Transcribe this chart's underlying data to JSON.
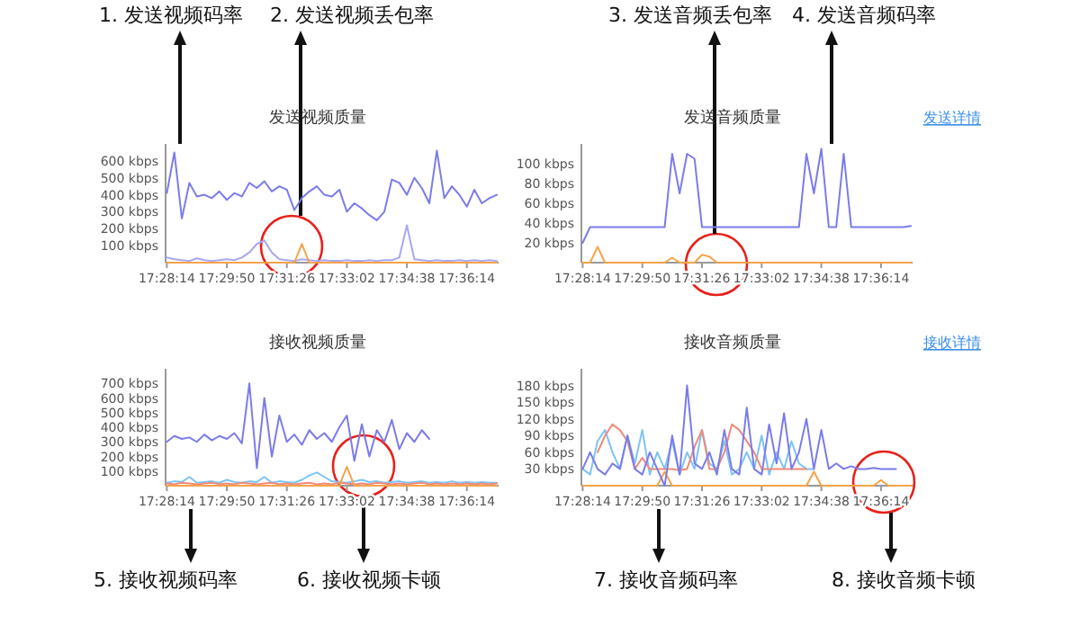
{
  "chart_data": [
    {
      "type": "line",
      "title": "发送视频质量",
      "xlim": [
        17.47,
        17.618
      ],
      "ylim": [
        0,
        700
      ],
      "xticks": [
        {
          "value": 17.47056,
          "label": "17:28:14"
        },
        {
          "value": 17.49722,
          "label": "17:29:50"
        },
        {
          "value": 17.52389,
          "label": "17:31:26"
        },
        {
          "value": 17.55056,
          "label": "17:33:02"
        },
        {
          "value": 17.57722,
          "label": "17:34:38"
        },
        {
          "value": 17.60389,
          "label": "17:36:14"
        }
      ],
      "yticks": [
        {
          "value": 100,
          "label": "100 kbps"
        },
        {
          "value": 200,
          "label": "200 kbps"
        },
        {
          "value": 300,
          "label": "300 kbps"
        },
        {
          "value": 400,
          "label": "400 kbps"
        },
        {
          "value": 500,
          "label": "500 kbps"
        },
        {
          "value": 600,
          "label": "600 kbps"
        }
      ],
      "x": [
        17.47056,
        17.47389,
        17.47722,
        17.48056,
        17.48389,
        17.48722,
        17.49056,
        17.49389,
        17.49722,
        17.50056,
        17.50389,
        17.50722,
        17.51056,
        17.51389,
        17.51722,
        17.52056,
        17.52389,
        17.52722,
        17.53056,
        17.53389,
        17.53722,
        17.54056,
        17.54389,
        17.54722,
        17.55056,
        17.55389,
        17.55722,
        17.56056,
        17.56389,
        17.56722,
        17.57056,
        17.57389,
        17.57722,
        17.58056,
        17.58389,
        17.58722,
        17.59056,
        17.59389,
        17.59722,
        17.60056,
        17.60389,
        17.60722,
        17.61056,
        17.61389,
        17.61722
      ],
      "series": [
        {
          "color": "#a7a7f3",
          "values": [
            30,
            20,
            15,
            10,
            25,
            15,
            10,
            15,
            20,
            15,
            30,
            60,
            110,
            130,
            60,
            20,
            15,
            10,
            20,
            15,
            10,
            15,
            10,
            10,
            15,
            10,
            10,
            15,
            10,
            15,
            15,
            30,
            220,
            20,
            15,
            10,
            15,
            10,
            10,
            15,
            10,
            15,
            10,
            15,
            10
          ]
        },
        {
          "color": "#f5a34a",
          "values": [
            0,
            0,
            0,
            0,
            0,
            0,
            0,
            0,
            0,
            0,
            0,
            0,
            0,
            0,
            0,
            0,
            0,
            0,
            110,
            0,
            0,
            0,
            0,
            0,
            0,
            0,
            0,
            0,
            0,
            0,
            0,
            0,
            0,
            0,
            0,
            0,
            0,
            0,
            0,
            0,
            0,
            0,
            0,
            0,
            0
          ]
        },
        {
          "color": "#7b7bec",
          "values": [
            410,
            650,
            260,
            470,
            390,
            400,
            380,
            420,
            370,
            410,
            390,
            470,
            440,
            480,
            420,
            450,
            430,
            310,
            380,
            420,
            450,
            400,
            390,
            430,
            300,
            350,
            320,
            280,
            250,
            300,
            490,
            470,
            400,
            500,
            440,
            350,
            660,
            380,
            450,
            400,
            330,
            430,
            350,
            380,
            400
          ]
        }
      ],
      "annotations": [
        "1. 发送视频码率",
        "2. 发送视频丢包率"
      ]
    },
    {
      "type": "line",
      "title": "发送音频质量",
      "xlim": [
        17.47,
        17.618
      ],
      "ylim": [
        0,
        120
      ],
      "xticks": [
        {
          "value": 17.47056,
          "label": "17:28:14"
        },
        {
          "value": 17.49722,
          "label": "17:29:50"
        },
        {
          "value": 17.52389,
          "label": "17:31:26"
        },
        {
          "value": 17.55056,
          "label": "17:33:02"
        },
        {
          "value": 17.57722,
          "label": "17:34:38"
        },
        {
          "value": 17.60389,
          "label": "17:36:14"
        }
      ],
      "yticks": [
        {
          "value": 20,
          "label": "20 kbps"
        },
        {
          "value": 40,
          "label": "40 kbps"
        },
        {
          "value": 60,
          "label": "60 kbps"
        },
        {
          "value": 80,
          "label": "80 kbps"
        },
        {
          "value": 100,
          "label": "100 kbps"
        }
      ],
      "x": [
        17.47056,
        17.47389,
        17.47722,
        17.48056,
        17.48389,
        17.48722,
        17.49056,
        17.49389,
        17.49722,
        17.50056,
        17.50389,
        17.50722,
        17.51056,
        17.51389,
        17.51722,
        17.52056,
        17.52389,
        17.52722,
        17.53056,
        17.53389,
        17.53722,
        17.54056,
        17.54389,
        17.54722,
        17.55056,
        17.55389,
        17.55722,
        17.56056,
        17.56389,
        17.56722,
        17.57056,
        17.57389,
        17.57722,
        17.58056,
        17.58389,
        17.58722,
        17.59056,
        17.59389,
        17.59722,
        17.60056,
        17.60389,
        17.60722,
        17.61056,
        17.61389,
        17.61722
      ],
      "series": [
        {
          "color": "#f5a34a",
          "values": [
            0,
            0,
            16,
            0,
            0,
            0,
            0,
            0,
            0,
            0,
            0,
            0,
            5,
            0,
            0,
            0,
            8,
            6,
            0,
            0,
            0,
            0,
            0,
            0,
            0,
            0,
            0,
            0,
            0,
            0,
            0,
            0,
            0,
            0,
            0,
            0,
            0,
            0,
            0,
            0,
            0,
            0,
            0,
            0,
            0
          ]
        },
        {
          "color": "#7b7bec",
          "values": [
            20,
            36,
            36,
            36,
            36,
            36,
            36,
            36,
            36,
            36,
            36,
            36,
            110,
            70,
            110,
            105,
            36,
            36,
            36,
            36,
            36,
            36,
            36,
            36,
            36,
            36,
            36,
            36,
            36,
            36,
            110,
            70,
            115,
            36,
            36,
            110,
            36,
            36,
            36,
            36,
            36,
            36,
            36,
            36,
            37
          ]
        }
      ],
      "annotations": [
        "3. 发送音频丢包率",
        "4. 发送音频码率",
        "发送详情"
      ]
    },
    {
      "type": "line",
      "title": "接收视频质量",
      "xlim": [
        17.47,
        17.618
      ],
      "ylim": [
        0,
        800
      ],
      "xticks": [
        {
          "value": 17.47056,
          "label": "17:28:14"
        },
        {
          "value": 17.49722,
          "label": "17:29:50"
        },
        {
          "value": 17.52389,
          "label": "17:31:26"
        },
        {
          "value": 17.55056,
          "label": "17:33:02"
        },
        {
          "value": 17.57722,
          "label": "17:34:38"
        },
        {
          "value": 17.60389,
          "label": "17:36:14"
        }
      ],
      "yticks": [
        {
          "value": 100,
          "label": "100 kbps"
        },
        {
          "value": 200,
          "label": "200 kbps"
        },
        {
          "value": 300,
          "label": "300 kbps"
        },
        {
          "value": 400,
          "label": "400 kbps"
        },
        {
          "value": 500,
          "label": "500 kbps"
        },
        {
          "value": 600,
          "label": "600 kbps"
        },
        {
          "value": 700,
          "label": "700 kbps"
        }
      ],
      "x": [
        17.47056,
        17.47389,
        17.47722,
        17.48056,
        17.48389,
        17.48722,
        17.49056,
        17.49389,
        17.49722,
        17.50056,
        17.50389,
        17.50722,
        17.51056,
        17.51389,
        17.51722,
        17.52056,
        17.52389,
        17.52722,
        17.53056,
        17.53389,
        17.53722,
        17.54056,
        17.54389,
        17.54722,
        17.55056,
        17.55389,
        17.55722,
        17.56056,
        17.56389,
        17.56722,
        17.57056,
        17.57389,
        17.57722,
        17.58056,
        17.58389,
        17.58722,
        17.59056,
        17.59389,
        17.59722,
        17.60056,
        17.60389,
        17.60722,
        17.61056,
        17.61389,
        17.61722
      ],
      "series": [
        {
          "color": "#7cc4f5",
          "values": [
            20,
            30,
            25,
            60,
            20,
            25,
            30,
            20,
            40,
            25,
            20,
            30,
            25,
            60,
            20,
            30,
            25,
            20,
            40,
            70,
            90,
            60,
            30,
            25,
            20,
            30,
            40,
            25,
            30,
            20,
            25,
            30,
            20,
            25,
            30,
            20,
            25,
            20,
            30,
            20,
            25,
            20,
            25,
            20,
            20
          ]
        },
        {
          "color": "#f08a78",
          "values": [
            15,
            10,
            20,
            15,
            10,
            15,
            20,
            10,
            15,
            10,
            20,
            15,
            10,
            15,
            20,
            10,
            15,
            10,
            15,
            20,
            10,
            15,
            10,
            20,
            15,
            10,
            15,
            10,
            20,
            15,
            10,
            15,
            10,
            15,
            20,
            10,
            15,
            10,
            15,
            10,
            15,
            10,
            15,
            10,
            15
          ]
        },
        {
          "color": "#f5a34a",
          "values": [
            0,
            0,
            0,
            0,
            0,
            0,
            0,
            0,
            0,
            0,
            0,
            0,
            0,
            0,
            0,
            0,
            0,
            0,
            0,
            0,
            0,
            0,
            0,
            0,
            130,
            0,
            0,
            0,
            0,
            0,
            0,
            0,
            0,
            0,
            0,
            0,
            0,
            0,
            0,
            0,
            0,
            0,
            0,
            0,
            0
          ]
        },
        {
          "color": "#7b7bec",
          "values": [
            300,
            340,
            320,
            330,
            300,
            350,
            310,
            340,
            320,
            360,
            290,
            700,
            120,
            600,
            200,
            480,
            300,
            350,
            280,
            380,
            320,
            360,
            300,
            400,
            480,
            170,
            420,
            200,
            380,
            300,
            450,
            250,
            360,
            300,
            380,
            320,
            null,
            null,
            null,
            null,
            null,
            null,
            null,
            null,
            null
          ]
        }
      ],
      "annotations": [
        "5. 接收视频码率",
        "6. 接收视频卡顿"
      ]
    },
    {
      "type": "line",
      "title": "接收音频质量",
      "xlim": [
        17.47,
        17.618
      ],
      "ylim": [
        0,
        210
      ],
      "xticks": [
        {
          "value": 17.47056,
          "label": "17:28:14"
        },
        {
          "value": 17.49722,
          "label": "17:29:50"
        },
        {
          "value": 17.52389,
          "label": "17:31:26"
        },
        {
          "value": 17.55056,
          "label": "17:33:02"
        },
        {
          "value": 17.57722,
          "label": "17:34:38"
        },
        {
          "value": 17.60389,
          "label": "17:36:14"
        }
      ],
      "yticks": [
        {
          "value": 30,
          "label": "30 kbps"
        },
        {
          "value": 60,
          "label": "60 kbps"
        },
        {
          "value": 90,
          "label": "90 kbps"
        },
        {
          "value": 120,
          "label": "120 kbps"
        },
        {
          "value": 150,
          "label": "150 kbps"
        },
        {
          "value": 180,
          "label": "180 kbps"
        }
      ],
      "x": [
        17.47056,
        17.47389,
        17.47722,
        17.48056,
        17.48389,
        17.48722,
        17.49056,
        17.49389,
        17.49722,
        17.50056,
        17.50389,
        17.50722,
        17.51056,
        17.51389,
        17.51722,
        17.52056,
        17.52389,
        17.52722,
        17.53056,
        17.53389,
        17.53722,
        17.54056,
        17.54389,
        17.54722,
        17.55056,
        17.55389,
        17.55722,
        17.56056,
        17.56389,
        17.56722,
        17.57056,
        17.57389,
        17.57722,
        17.58056,
        17.58389,
        17.58722,
        17.59056,
        17.59389,
        17.59722,
        17.60056,
        17.60389,
        17.60722,
        17.61056,
        17.61389,
        17.61722
      ],
      "series": [
        {
          "color": "#7cc4f5",
          "values": [
            30,
            20,
            80,
            100,
            60,
            30,
            90,
            40,
            100,
            20,
            60,
            30,
            80,
            20,
            60,
            30,
            100,
            40,
            30,
            80,
            20,
            30,
            60,
            30,
            90,
            20,
            60,
            30,
            80,
            40,
            30,
            30,
            null,
            null,
            null,
            null,
            null,
            null,
            null,
            null,
            null,
            null,
            null,
            null,
            null
          ]
        },
        {
          "color": "#f08a78",
          "values": [
            null,
            null,
            60,
            90,
            110,
            100,
            80,
            30,
            50,
            30,
            30,
            30,
            30,
            28,
            30,
            70,
            100,
            30,
            30,
            60,
            110,
            100,
            80,
            60,
            30,
            30,
            30,
            30,
            30,
            30,
            30,
            null,
            null,
            null,
            null,
            null,
            null,
            null,
            null,
            null,
            null,
            null,
            null,
            null,
            null
          ]
        },
        {
          "color": "#f5a34a",
          "values": [
            0,
            0,
            0,
            0,
            0,
            0,
            0,
            0,
            0,
            0,
            0,
            25,
            0,
            0,
            0,
            0,
            0,
            0,
            0,
            0,
            0,
            0,
            0,
            0,
            0,
            0,
            0,
            0,
            0,
            0,
            0,
            25,
            0,
            0,
            0,
            0,
            0,
            0,
            0,
            0,
            10,
            0,
            0,
            0,
            0
          ]
        },
        {
          "color": "#7b7bec",
          "values": [
            30,
            60,
            30,
            20,
            40,
            30,
            90,
            30,
            20,
            60,
            30,
            0,
            90,
            20,
            180,
            40,
            30,
            60,
            20,
            100,
            30,
            20,
            140,
            30,
            20,
            110,
            40,
            130,
            30,
            60,
            120,
            30,
            100,
            30,
            40,
            30,
            35,
            30,
            30,
            32,
            30,
            30,
            30,
            null,
            null
          ]
        }
      ],
      "annotations": [
        "7. 接收音频码率",
        "8. 接收音频卡顿",
        "接收详情"
      ]
    }
  ]
}
